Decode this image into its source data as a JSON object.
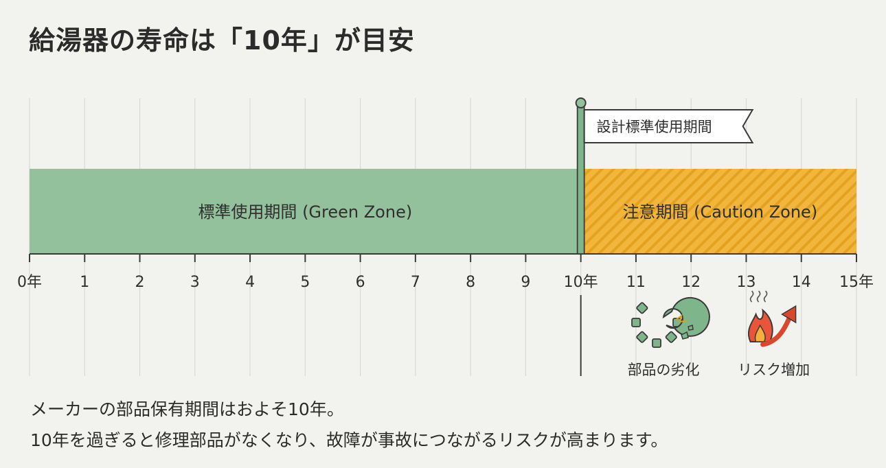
{
  "title": "給湯器の寿命は「10年」が目安",
  "timeline": {
    "axis_min": 0,
    "axis_max": 15,
    "ticks": [
      {
        "value": 0,
        "label": "0年"
      },
      {
        "value": 1,
        "label": "1"
      },
      {
        "value": 2,
        "label": "2"
      },
      {
        "value": 3,
        "label": "3"
      },
      {
        "value": 4,
        "label": "4"
      },
      {
        "value": 5,
        "label": "5"
      },
      {
        "value": 6,
        "label": "6"
      },
      {
        "value": 7,
        "label": "7"
      },
      {
        "value": 8,
        "label": "8"
      },
      {
        "value": 9,
        "label": "9"
      },
      {
        "value": 10,
        "label": "10年"
      },
      {
        "value": 11,
        "label": "11"
      },
      {
        "value": 12,
        "label": "12"
      },
      {
        "value": 13,
        "label": "13"
      },
      {
        "value": 14,
        "label": "14"
      },
      {
        "value": 15,
        "label": "15年"
      }
    ],
    "green_zone": {
      "start": 0,
      "end": 10,
      "label": "標準使用期間 (Green Zone)",
      "color": "#93c19c"
    },
    "caution_zone": {
      "start": 10,
      "end": 15,
      "label": "注意期間 (Caution Zone)",
      "color": "#f2b63c",
      "stripe_color": "#e0a020"
    },
    "marker": {
      "value": 10,
      "label": "設計標準使用期間"
    },
    "risks": [
      {
        "value": 11.5,
        "label": "部品の劣化",
        "icon": "broken-gear-icon"
      },
      {
        "value": 13.5,
        "label": "リスク増加",
        "icon": "fire-rising-arrow-icon"
      }
    ]
  },
  "caption": {
    "line1": "メーカーの部品保有期間はおよそ10年。",
    "line2": "10年を過ぎると修理部品がなくなり、故障が事故につながるリスクが高まります。"
  }
}
